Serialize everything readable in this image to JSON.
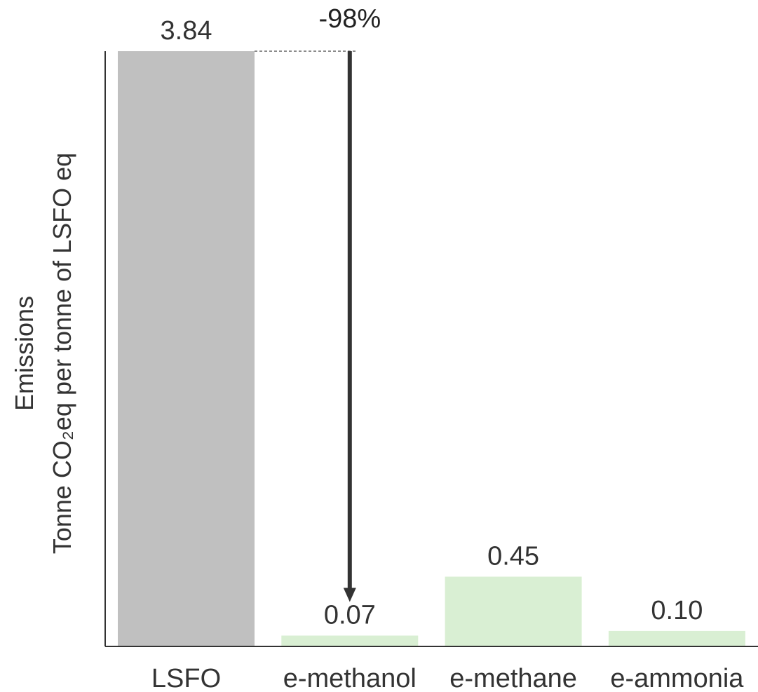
{
  "chart_data": {
    "type": "bar",
    "title": "",
    "xlabel": "",
    "ylabel": {
      "line1": "Emissions",
      "line2": "Tonne CO₂eq per tonne of LSFO eq"
    },
    "categories": [
      "LSFO",
      "e-methanol",
      "e-methane",
      "e-ammonia"
    ],
    "values": [
      3.84,
      0.07,
      0.45,
      0.1
    ],
    "value_labels": [
      "3.84",
      "0.07",
      "0.45",
      "0.10"
    ],
    "ylim": [
      0,
      3.84
    ],
    "grid": false,
    "legend": "none",
    "annotation": {
      "text": "-98%",
      "from_category": "LSFO",
      "to_category": "e-methanol",
      "from_value": 3.84,
      "to_value": 0.07
    },
    "colors": {
      "baseline_bar": "#c0c0c0",
      "alternative_bar": "#d9efd3",
      "axis": "#333333",
      "arrow": "#333333",
      "guide": "#666666"
    }
  }
}
